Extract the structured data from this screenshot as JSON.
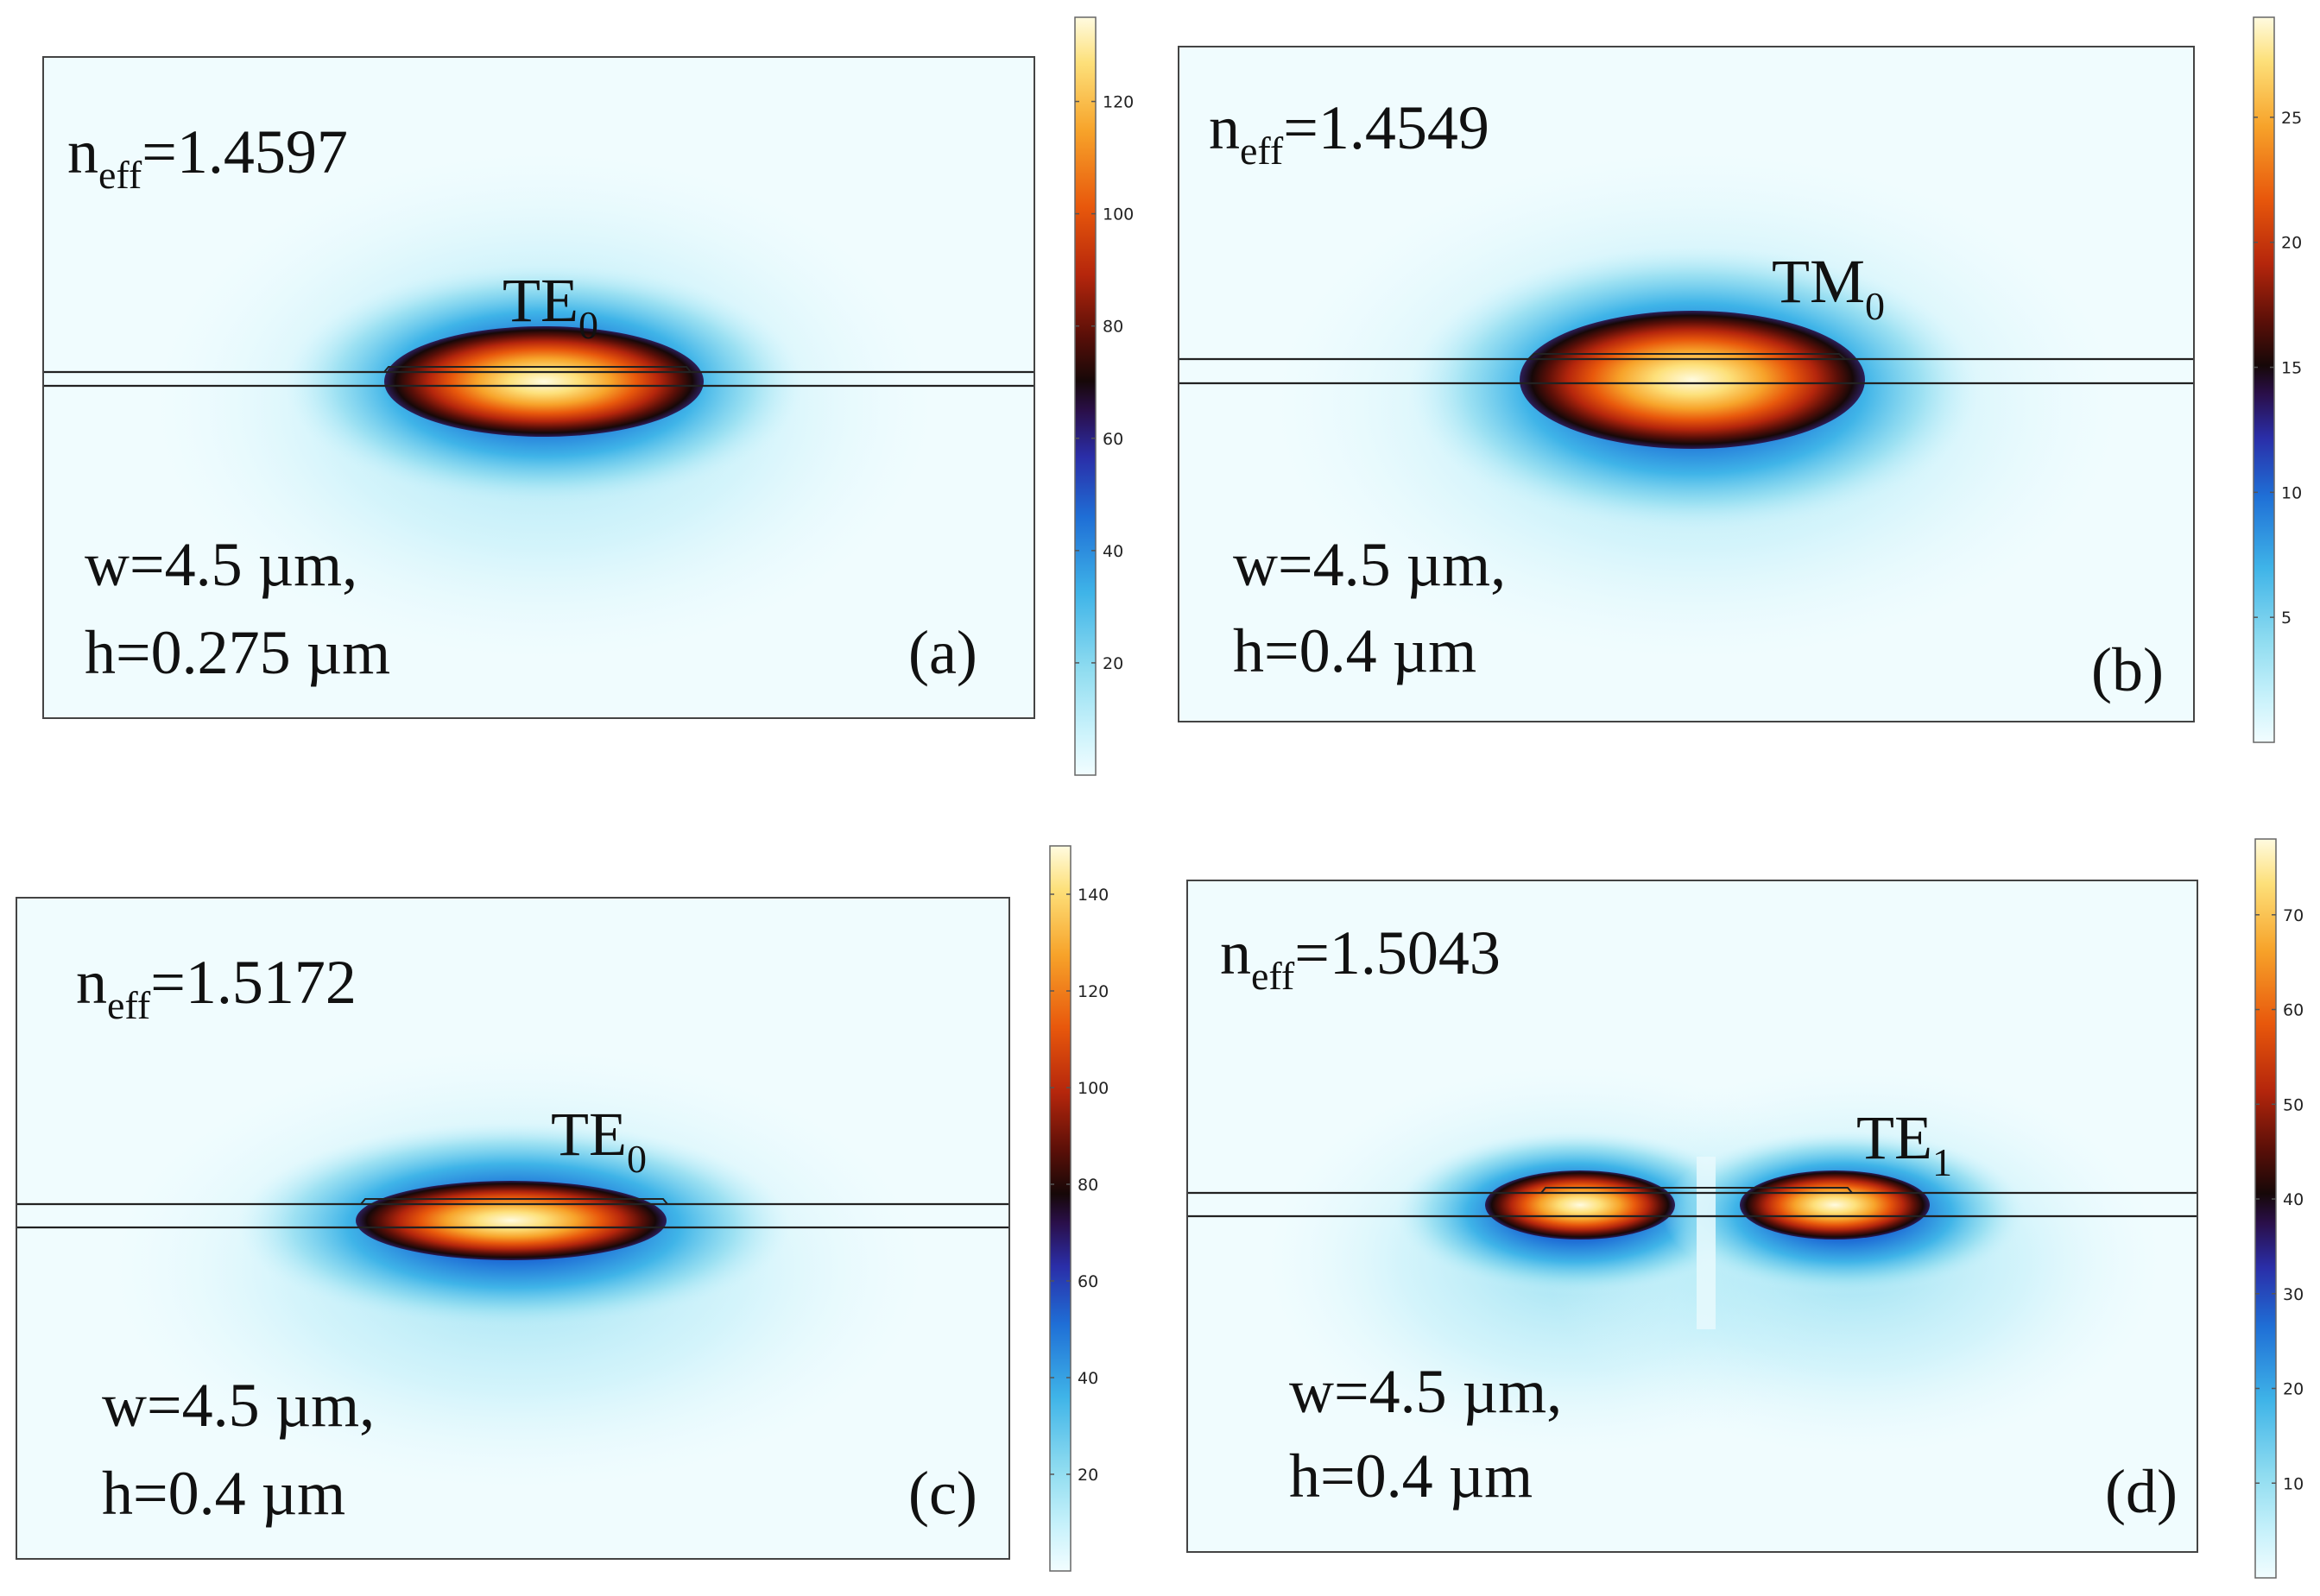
{
  "figure": {
    "description_free": true,
    "panels": [
      {
        "id": "a",
        "neff_symbol": "n",
        "neff_subscript": "eff",
        "neff_value": "=1.4597",
        "mode_main": "TE",
        "mode_sub": "0",
        "width_text": "w=4.5 µm,",
        "height_text": "h=0.275 µm",
        "panel_label": "(a)",
        "colorbar": {
          "max": 135,
          "ticks": [
            "120",
            "100",
            "80",
            "60",
            "40",
            "20"
          ],
          "tick_values": [
            120,
            100,
            80,
            60,
            40,
            20
          ]
        },
        "field": {
          "lobes": 1,
          "width_um": 4.5,
          "height_um": 0.275
        }
      },
      {
        "id": "b",
        "neff_symbol": "n",
        "neff_subscript": "eff",
        "neff_value": "=1.4549",
        "mode_main": "TM",
        "mode_sub": "0",
        "width_text": "w=4.5 µm,",
        "height_text": "h=0.4 µm",
        "panel_label": "(b)",
        "colorbar": {
          "max": 29,
          "ticks": [
            "25",
            "20",
            "15",
            "10",
            "5"
          ],
          "tick_values": [
            25,
            20,
            15,
            10,
            5
          ]
        },
        "field": {
          "lobes": 1,
          "width_um": 4.5,
          "height_um": 0.4
        }
      },
      {
        "id": "c",
        "neff_symbol": "n",
        "neff_subscript": "eff",
        "neff_value": "=1.5172",
        "mode_main": "TE",
        "mode_sub": "0",
        "width_text": "w=4.5 µm,",
        "height_text": "h=0.4 µm",
        "panel_label": "(c)",
        "colorbar": {
          "max": 150,
          "ticks": [
            "140",
            "120",
            "100",
            "80",
            "60",
            "40",
            "20"
          ],
          "tick_values": [
            140,
            120,
            100,
            80,
            60,
            40,
            20
          ]
        },
        "field": {
          "lobes": 1,
          "width_um": 4.5,
          "height_um": 0.4
        }
      },
      {
        "id": "d",
        "neff_symbol": "n",
        "neff_subscript": "eff",
        "neff_value": "=1.5043",
        "mode_main": "TE",
        "mode_sub": "1",
        "width_text": "w=4.5 µm,",
        "height_text": "h=0.4 µm",
        "panel_label": "(d)",
        "colorbar": {
          "max": 78,
          "ticks": [
            "70",
            "60",
            "50",
            "40",
            "30",
            "20",
            "10"
          ],
          "tick_values": [
            70,
            60,
            50,
            40,
            30,
            20,
            10
          ]
        },
        "field": {
          "lobes": 2,
          "width_um": 4.5,
          "height_um": 0.4
        }
      }
    ],
    "colormap": [
      "#f2fdff",
      "#c9f2fb",
      "#8fdcf0",
      "#3fb4e8",
      "#1f6fd6",
      "#2a2ea8",
      "#2a0f4a",
      "#160808",
      "#5a0f08",
      "#b5260c",
      "#e8580c",
      "#f7a32a",
      "#fde07a",
      "#fffbe0"
    ],
    "colors": {
      "background": "#ffffff",
      "frame": "#444444",
      "waveguide_line": "#222222"
    }
  }
}
